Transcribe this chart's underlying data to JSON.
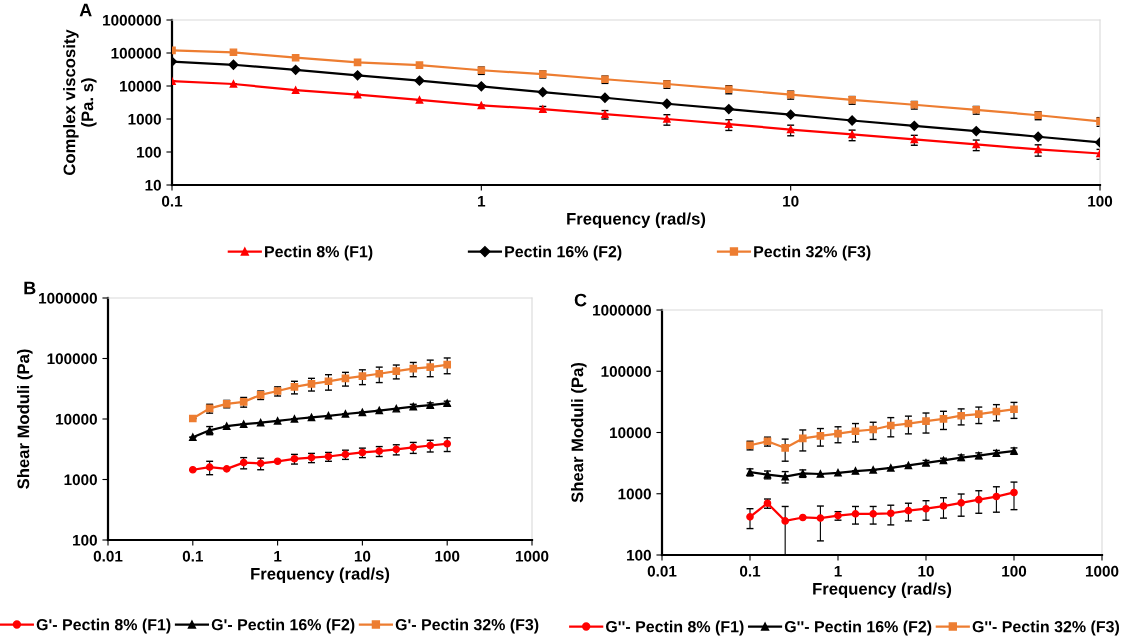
{
  "chart_data": [
    {
      "type": "line",
      "title": "A",
      "xlabel": "Frequency (rad/s)",
      "ylabel": "Complex viscosity\n(Pa. s)",
      "log": "xy",
      "xlim": [
        0.1,
        100
      ],
      "xticks": [
        0.1,
        1,
        10,
        100
      ],
      "ylim": [
        10,
        1000000
      ],
      "yticks": [
        10,
        100,
        1000,
        10000,
        100000,
        1000000
      ],
      "legend": "bottom",
      "grid": false,
      "x": [
        0.1,
        0.158,
        0.251,
        0.398,
        0.631,
        1,
        1.58,
        2.51,
        3.98,
        6.31,
        10,
        15.8,
        25.1,
        39.8,
        63.1,
        100
      ],
      "series": [
        {
          "name": "Pectin 8% (F1)",
          "color": "#ff0000",
          "marker": "triangle",
          "values": [
            14000,
            11500,
            7500,
            5500,
            3800,
            2600,
            2000,
            1400,
            1000,
            700,
            480,
            340,
            240,
            170,
            120,
            90
          ],
          "errors": [
            null,
            null,
            null,
            null,
            null,
            null,
            400,
            400,
            350,
            250,
            170,
            120,
            80,
            60,
            45,
            30
          ]
        },
        {
          "name": "Pectin 16% (F2)",
          "color": "#000000",
          "marker": "diamond",
          "values": [
            55000,
            44000,
            31000,
            21000,
            14500,
            9800,
            6500,
            4400,
            2900,
            2000,
            1350,
            900,
            620,
            430,
            290,
            195
          ]
        },
        {
          "name": "Pectin 32% (F3)",
          "color": "#ed7d31",
          "marker": "square",
          "values": [
            120000,
            105000,
            72000,
            52000,
            43000,
            30000,
            23000,
            16000,
            11500,
            8000,
            5500,
            3800,
            2700,
            1900,
            1300,
            850
          ],
          "errors": [
            null,
            null,
            null,
            null,
            null,
            7500,
            5500,
            4000,
            3000,
            2200,
            1500,
            1000,
            700,
            500,
            350,
            250
          ]
        }
      ]
    },
    {
      "type": "line",
      "title": "B",
      "xlabel": "Frequency (rad/s)",
      "ylabel": "Shear Moduli (Pa)",
      "log": "xy",
      "xlim": [
        0.01,
        1000
      ],
      "xticks": [
        0.01,
        0.1,
        1,
        10,
        100,
        1000
      ],
      "ylim": [
        100,
        1000000
      ],
      "yticks": [
        100,
        1000,
        10000,
        100000,
        1000000
      ],
      "legend": "bottom",
      "grid": false,
      "x": [
        0.1,
        0.158,
        0.251,
        0.398,
        0.631,
        1,
        1.58,
        2.51,
        3.98,
        6.31,
        10,
        15.8,
        25.1,
        39.8,
        63.1,
        100
      ],
      "series": [
        {
          "name": "G'- Pectin 8% (F1)",
          "color": "#ff0000",
          "marker": "circle",
          "values": [
            1450,
            1600,
            1500,
            1900,
            1850,
            2000,
            2200,
            2300,
            2400,
            2600,
            2800,
            2950,
            3150,
            3400,
            3650,
            3900
          ],
          "errors": [
            null,
            400,
            null,
            400,
            400,
            null,
            400,
            400,
            400,
            450,
            500,
            550,
            600,
            700,
            800,
            1000
          ]
        },
        {
          "name": "G'- Pectin 16% (F2)",
          "color": "#000000",
          "marker": "triangle",
          "values": [
            5000,
            6500,
            7600,
            8200,
            8700,
            9300,
            10000,
            10600,
            11300,
            12100,
            12900,
            13800,
            14800,
            16000,
            17000,
            18200
          ],
          "errors": [
            null,
            1000,
            null,
            null,
            null,
            null,
            null,
            null,
            null,
            null,
            null,
            null,
            null,
            1500,
            1500,
            1500
          ]
        },
        {
          "name": "G'- Pectin 32% (F3)",
          "color": "#ed7d31",
          "marker": "square",
          "values": [
            10200,
            15000,
            17800,
            19200,
            25000,
            29000,
            34000,
            38000,
            42000,
            47000,
            51000,
            56000,
            62000,
            68000,
            72000,
            79000
          ],
          "errors": [
            null,
            2500,
            2500,
            3500,
            4000,
            5000,
            8000,
            9000,
            12000,
            12000,
            14000,
            16000,
            16000,
            18000,
            22000,
            23000
          ]
        }
      ]
    },
    {
      "type": "line",
      "title": "C",
      "xlabel": "Frequency (rad/s)",
      "ylabel": "Shear Moduli (Pa)",
      "log": "xy",
      "xlim": [
        0.01,
        1000
      ],
      "xticks": [
        0.01,
        0.1,
        1,
        10,
        100,
        1000
      ],
      "ylim": [
        100,
        1000000
      ],
      "yticks": [
        100,
        1000,
        10000,
        100000,
        1000000
      ],
      "legend": "bottom",
      "grid": false,
      "x": [
        0.1,
        0.158,
        0.251,
        0.398,
        0.631,
        1,
        1.58,
        2.51,
        3.98,
        6.31,
        10,
        15.8,
        25.1,
        39.8,
        63.1,
        100
      ],
      "series": [
        {
          "name": "G''- Pectin 8% (F1)",
          "color": "#ff0000",
          "marker": "circle",
          "values": [
            420,
            700,
            360,
            410,
            400,
            440,
            470,
            470,
            480,
            530,
            570,
            630,
            710,
            800,
            900,
            1050
          ],
          "errors": [
            150,
            120,
            260,
            null,
            230,
            70,
            150,
            150,
            170,
            170,
            200,
            230,
            280,
            320,
            400,
            500
          ]
        },
        {
          "name": "G''- Pectin 16% (F2)",
          "color": "#000000",
          "marker": "triangle",
          "values": [
            2250,
            2050,
            1900,
            2150,
            2100,
            2200,
            2350,
            2450,
            2650,
            2900,
            3200,
            3500,
            3900,
            4200,
            4600,
            5000
          ],
          "errors": [
            300,
            300,
            400,
            300,
            null,
            null,
            null,
            null,
            null,
            null,
            300,
            300,
            400,
            450,
            500,
            600
          ]
        },
        {
          "name": "G''- Pectin 32% (F3)",
          "color": "#ed7d31",
          "marker": "square",
          "values": [
            6200,
            7200,
            5600,
            8000,
            8800,
            9600,
            10500,
            11200,
            13000,
            14000,
            15300,
            16700,
            18800,
            20000,
            22000,
            24000
          ],
          "errors": [
            1000,
            1200,
            2200,
            3000,
            2800,
            2800,
            3500,
            3500,
            4500,
            4500,
            5500,
            5500,
            5500,
            6000,
            6500,
            7000
          ]
        }
      ]
    }
  ]
}
